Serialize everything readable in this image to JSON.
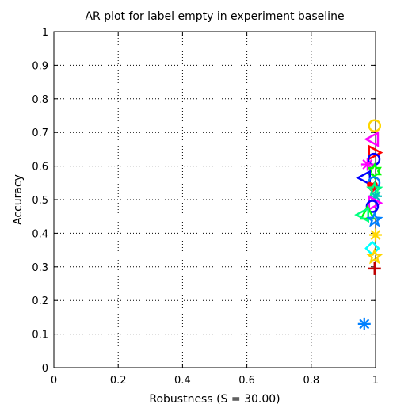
{
  "chart_data": {
    "type": "scatter",
    "title": "AR plot for label empty in experiment baseline",
    "xlabel": "Robustness (S = 30.00)",
    "ylabel": "Accuracy",
    "xlim": [
      0,
      1
    ],
    "ylim": [
      0,
      1
    ],
    "xticks": [
      "0",
      "0.2",
      "0.4",
      "0.6",
      "0.8",
      "1"
    ],
    "yticks": [
      "0",
      "0.1",
      "0.2",
      "0.3",
      "0.4",
      "0.5",
      "0.6",
      "0.7",
      "0.8",
      "0.9",
      "1"
    ],
    "grid": true,
    "points": [
      {
        "x": 0.997,
        "y": 0.72,
        "marker": "circle",
        "color": "#FFD700"
      },
      {
        "x": 0.99,
        "y": 0.68,
        "marker": "triangle-left",
        "color": "#FF00FF"
      },
      {
        "x": 0.997,
        "y": 0.64,
        "marker": "triangle-right",
        "color": "#FF0000"
      },
      {
        "x": 0.995,
        "y": 0.62,
        "marker": "circle",
        "color": "#0000FF"
      },
      {
        "x": 0.975,
        "y": 0.605,
        "marker": "asterisk",
        "color": "#FF00FF"
      },
      {
        "x": 0.997,
        "y": 0.585,
        "marker": "hexagram",
        "color": "#00FF00"
      },
      {
        "x": 0.965,
        "y": 0.565,
        "marker": "triangle-left",
        "color": "#0000FF"
      },
      {
        "x": 0.995,
        "y": 0.55,
        "marker": "circle",
        "color": "#0080FF"
      },
      {
        "x": 0.99,
        "y": 0.54,
        "marker": "heart",
        "color": "#FF0000"
      },
      {
        "x": 0.997,
        "y": 0.53,
        "marker": "pentagram",
        "color": "#00FF80"
      },
      {
        "x": 1.0,
        "y": 0.51,
        "marker": "asterisk",
        "color": "#00BFBF"
      },
      {
        "x": 0.997,
        "y": 0.49,
        "marker": "triangle-right",
        "color": "#FF00FF"
      },
      {
        "x": 0.99,
        "y": 0.48,
        "marker": "circle",
        "color": "#0000FF"
      },
      {
        "x": 0.975,
        "y": 0.46,
        "marker": "triangle-up",
        "color": "#00FF00"
      },
      {
        "x": 0.96,
        "y": 0.455,
        "marker": "triangle-left",
        "color": "#00FF80"
      },
      {
        "x": 0.997,
        "y": 0.44,
        "marker": "pentagram",
        "color": "#0080FF"
      },
      {
        "x": 1.0,
        "y": 0.395,
        "marker": "asterisk",
        "color": "#FFD700"
      },
      {
        "x": 0.99,
        "y": 0.355,
        "marker": "diamond",
        "color": "#00FFFF"
      },
      {
        "x": 0.997,
        "y": 0.33,
        "marker": "pentagram",
        "color": "#FFD700"
      },
      {
        "x": 0.997,
        "y": 0.295,
        "marker": "plus",
        "color": "#C00000"
      },
      {
        "x": 0.965,
        "y": 0.13,
        "marker": "asterisk",
        "color": "#0080FF"
      }
    ]
  }
}
